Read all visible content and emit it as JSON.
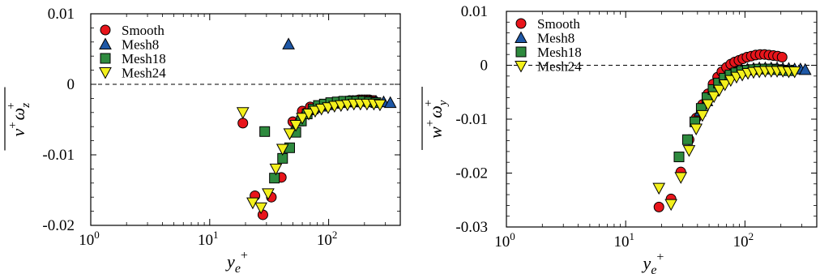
{
  "chart_data": [
    {
      "type": "scatter",
      "x_scale": "log",
      "xlim": [
        1,
        400
      ],
      "ylim": [
        -0.02,
        0.01
      ],
      "x_ticks": [
        {
          "base": "10",
          "exp": "0",
          "value": 1
        },
        {
          "base": "10",
          "exp": "1",
          "value": 10
        },
        {
          "base": "10",
          "exp": "2",
          "value": 100
        }
      ],
      "y_ticks": [
        {
          "label": "0.01",
          "value": 0.01
        },
        {
          "label": "0",
          "value": 0
        },
        {
          "label": "-0.01",
          "value": -0.01
        },
        {
          "label": "-0.02",
          "value": -0.02
        }
      ],
      "xlabel": {
        "main": "y",
        "sub": "e",
        "sup": "+"
      },
      "ylabel": {
        "a": "v",
        "a_sup": "+",
        "b": "ω",
        "b_sub": "z",
        "b_sup": "+"
      },
      "zero_line": true,
      "legend_position": "top-left",
      "series": [
        {
          "name": "Smooth",
          "marker": "circle",
          "color": "#e8151b",
          "x": [
            19,
            24,
            28,
            33,
            40,
            50,
            60,
            70,
            80,
            90,
            100,
            110,
            120,
            130,
            140,
            150,
            160,
            170,
            180,
            190,
            200,
            210,
            220,
            230,
            240
          ],
          "y": [
            -0.0055,
            -0.0158,
            -0.0185,
            -0.016,
            -0.0132,
            -0.0053,
            -0.0038,
            -0.0032,
            -0.0031,
            -0.0029,
            -0.0028,
            -0.0026,
            -0.0025,
            -0.0024,
            -0.0024,
            -0.0023,
            -0.0023,
            -0.0023,
            -0.0022,
            -0.0022,
            -0.0022,
            -0.0022,
            -0.0022,
            -0.0023,
            -0.0023
          ]
        },
        {
          "name": "Mesh8",
          "marker": "triangle-up",
          "color": "#1f58a6",
          "x": [
            46,
            55,
            62,
            70,
            78,
            88,
            100,
            115,
            130,
            150,
            170,
            190,
            220,
            250,
            290,
            330
          ],
          "y": [
            0.0057,
            -0.0052,
            -0.0042,
            -0.0036,
            -0.0033,
            -0.0031,
            -0.0029,
            -0.0027,
            -0.0026,
            -0.0025,
            -0.0025,
            -0.0024,
            -0.0024,
            -0.0024,
            -0.0025,
            -0.0026
          ]
        },
        {
          "name": "Mesh18",
          "marker": "square",
          "color": "#2e8a3e",
          "x": [
            29,
            35,
            41,
            47,
            53,
            59,
            66,
            74,
            82,
            92,
            104,
            118,
            134,
            152,
            172,
            195,
            220,
            250
          ],
          "y": [
            -0.0067,
            -0.0133,
            -0.0105,
            -0.009,
            -0.0068,
            -0.0052,
            -0.0042,
            -0.0035,
            -0.003,
            -0.0028,
            -0.0026,
            -0.0025,
            -0.0024,
            -0.0024,
            -0.0024,
            -0.0024,
            -0.0025,
            -0.0026
          ]
        },
        {
          "name": "Mesh24",
          "marker": "triangle-down",
          "color": "#f3f01c",
          "x": [
            19,
            23,
            27,
            31,
            36,
            41,
            47,
            53,
            60,
            68,
            77,
            87,
            99,
            112,
            127,
            144,
            163,
            185,
            210,
            240,
            270
          ],
          "y": [
            -0.004,
            -0.0168,
            -0.0175,
            -0.0155,
            -0.012,
            -0.0092,
            -0.007,
            -0.0058,
            -0.0048,
            -0.0042,
            -0.0038,
            -0.0035,
            -0.0033,
            -0.0031,
            -0.003,
            -0.0029,
            -0.0028,
            -0.0028,
            -0.0028,
            -0.0028,
            -0.0029
          ]
        }
      ]
    },
    {
      "type": "scatter",
      "x_scale": "log",
      "xlim": [
        1,
        400
      ],
      "ylim": [
        -0.03,
        0.01
      ],
      "x_ticks": [
        {
          "base": "10",
          "exp": "0",
          "value": 1
        },
        {
          "base": "10",
          "exp": "1",
          "value": 10
        },
        {
          "base": "10",
          "exp": "2",
          "value": 100
        }
      ],
      "y_ticks": [
        {
          "label": "0.01",
          "value": 0.01
        },
        {
          "label": "0",
          "value": 0
        },
        {
          "label": "-0.01",
          "value": -0.01
        },
        {
          "label": "-0.02",
          "value": -0.02
        },
        {
          "label": "-0.03",
          "value": -0.03
        }
      ],
      "xlabel": {
        "main": "y",
        "sub": "e",
        "sup": "+"
      },
      "ylabel": {
        "a": "w",
        "a_sup": "+",
        "b": "ω",
        "b_sub": "y",
        "b_sup": "+"
      },
      "zero_line": true,
      "legend_position": "top-left",
      "series": [
        {
          "name": "Smooth",
          "marker": "circle",
          "color": "#e8151b",
          "x": [
            19,
            24,
            29,
            34,
            39,
            44,
            49,
            54,
            59,
            64,
            70,
            76,
            82,
            89,
            96,
            104,
            113,
            123,
            134,
            146,
            159,
            173,
            188,
            205
          ],
          "y": [
            -0.0263,
            -0.0248,
            -0.0198,
            -0.0138,
            -0.0098,
            -0.0073,
            -0.0053,
            -0.0035,
            -0.0022,
            -0.0012,
            -0.0004,
            0.0002,
            0.0006,
            0.0009,
            0.0012,
            0.0015,
            0.0017,
            0.0019,
            0.002,
            0.002,
            0.0019,
            0.0018,
            0.0017,
            0.0015
          ]
        },
        {
          "name": "Mesh8",
          "marker": "triangle-up",
          "color": "#1f58a6",
          "x": [
            42,
            48,
            54,
            60,
            67,
            75,
            84,
            94,
            105,
            118,
            132,
            148,
            166,
            186,
            208,
            233,
            261,
            292,
            320
          ],
          "y": [
            -0.0085,
            -0.0066,
            -0.0048,
            -0.0034,
            -0.0024,
            -0.0017,
            -0.0012,
            -0.0009,
            -0.0007,
            -0.0006,
            -0.0005,
            -0.0005,
            -0.0005,
            -0.0005,
            -0.0006,
            -0.0006,
            -0.0007,
            -0.0007,
            -0.0008
          ]
        },
        {
          "name": "Mesh18",
          "marker": "square",
          "color": "#2e8a3e",
          "x": [
            28,
            33,
            38,
            43,
            48,
            54,
            60,
            67,
            75,
            84,
            94,
            105,
            118,
            132,
            148,
            166,
            186,
            208,
            233
          ],
          "y": [
            -0.017,
            -0.0138,
            -0.0105,
            -0.008,
            -0.006,
            -0.0045,
            -0.0033,
            -0.0024,
            -0.0018,
            -0.0014,
            -0.0011,
            -0.0009,
            -0.0008,
            -0.0007,
            -0.0007,
            -0.0007,
            -0.0008,
            -0.0009,
            -0.001
          ]
        },
        {
          "name": "Mesh24",
          "marker": "triangle-down",
          "color": "#f3f01c",
          "x": [
            19,
            24,
            29,
            34,
            39,
            44,
            49,
            55,
            61,
            68,
            76,
            85,
            95,
            106,
            118,
            132,
            148,
            166,
            186,
            208,
            233,
            261
          ],
          "y": [
            -0.0228,
            -0.0258,
            -0.0208,
            -0.0158,
            -0.0118,
            -0.0093,
            -0.0073,
            -0.0058,
            -0.0046,
            -0.0036,
            -0.0028,
            -0.0022,
            -0.0018,
            -0.0015,
            -0.0013,
            -0.0012,
            -0.0011,
            -0.0011,
            -0.0011,
            -0.0011,
            -0.0012,
            -0.0012
          ]
        }
      ]
    }
  ]
}
